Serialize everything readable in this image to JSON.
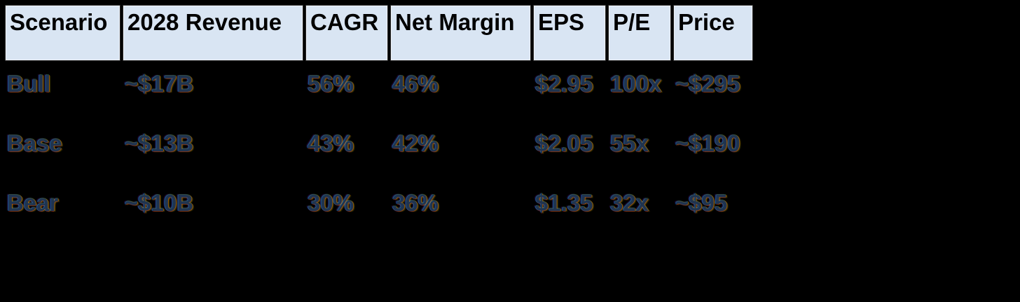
{
  "chart_data": {
    "type": "table",
    "title": "Financial scenario valuation table",
    "columns": [
      "Scenario",
      "2028 Revenue",
      "CAGR",
      "Net Margin",
      "EPS",
      "P/E",
      "Price"
    ],
    "rows": [
      [
        "Bull",
        "~$17B",
        "56%",
        "46%",
        "$2.95",
        "100x",
        "~$295"
      ],
      [
        "Base",
        "~$13B",
        "43%",
        "42%",
        "$2.05",
        "55x",
        "~$190"
      ],
      [
        "Bear",
        "~$10B",
        "30%",
        "36%",
        "$1.35",
        "32x",
        "~$95"
      ]
    ],
    "layout": {
      "header_position": "top",
      "grid": "off",
      "body_background": "black"
    }
  },
  "colors": {
    "background": "#000000",
    "header_bg": "#d9e5f3",
    "header_text": "#000000",
    "data_text": "#20344f"
  }
}
